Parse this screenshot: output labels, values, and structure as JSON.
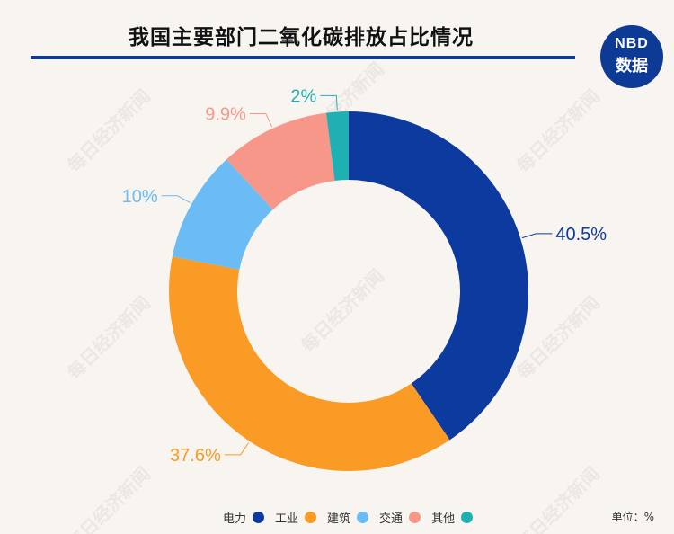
{
  "title": "我国主要部门二氧化碳排放占比情况",
  "logo": {
    "top": "NBD",
    "bottom": "数据"
  },
  "watermark": "每日经济新闻",
  "unit_label": "单位：%",
  "chart_data": {
    "type": "pie",
    "style": "donut",
    "title": "我国主要部门二氧化碳排放占比情况",
    "unit": "%",
    "legend_position": "bottom",
    "categories": [
      "电力",
      "工业",
      "建筑",
      "交通",
      "其他"
    ],
    "values": [
      40.5,
      37.6,
      10,
      9.9,
      2
    ],
    "labels": [
      "40.5%",
      "37.6%",
      "10%",
      "9.9%",
      "2%"
    ],
    "colors": [
      "#0d3a9e",
      "#f99b25",
      "#6bbcf5",
      "#f7978a",
      "#1fb0b4"
    ]
  }
}
